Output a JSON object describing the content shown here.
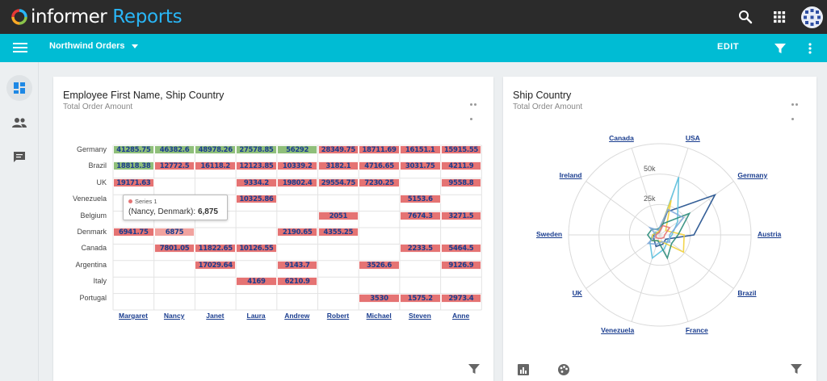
{
  "app": {
    "brand_name": "informer",
    "product": "Reports"
  },
  "toolbar": {
    "report_name": "Northwind Orders",
    "edit_label": "EDIT"
  },
  "rail": {
    "items": [
      "dashboard-icon",
      "people-icon",
      "chat-icon"
    ]
  },
  "heatmap_card": {
    "title": "Employee First Name, Ship Country",
    "subtitle": "Total Order Amount",
    "rows": [
      "Germany",
      "Brazil",
      "UK",
      "Venezuela",
      "Belgium",
      "Denmark",
      "Canada",
      "Argentina",
      "Italy",
      "Portugal"
    ],
    "cols": [
      "Margaret",
      "Nancy",
      "Janet",
      "Laura",
      "Andrew",
      "Robert",
      "Michael",
      "Steven",
      "Anne"
    ],
    "tooltip": {
      "series": "Series 1",
      "label": "(Nancy, Denmark):",
      "value": "6,875"
    }
  },
  "radar_card": {
    "title": "Ship Country",
    "subtitle": "Total Order Amount",
    "ticks": [
      "50k",
      "25k"
    ]
  },
  "chart_data": [
    {
      "type": "heatmap",
      "title": "Employee First Name, Ship Country",
      "subtitle": "Total Order Amount",
      "x_categories": [
        "Margaret",
        "Nancy",
        "Janet",
        "Laura",
        "Andrew",
        "Robert",
        "Michael",
        "Steven",
        "Anne"
      ],
      "y_categories": [
        "Germany",
        "Brazil",
        "UK",
        "Venezuela",
        "Belgium",
        "Denmark",
        "Canada",
        "Argentina",
        "Italy",
        "Portugal"
      ],
      "cells": [
        {
          "x": "Margaret",
          "y": "Germany",
          "label": "41285.75",
          "color": "green"
        },
        {
          "x": "Janet",
          "y": "Germany",
          "label": "48978.26",
          "color": "green"
        },
        {
          "x": "Laura",
          "y": "Germany",
          "label": "27578.85",
          "color": "green"
        },
        {
          "x": "Andrew",
          "y": "Germany",
          "label": "56292",
          "color": "green"
        },
        {
          "x": "Anne",
          "y": "Germany",
          "label": "15915.55",
          "color": "red"
        },
        {
          "x": "Nancy",
          "y": "Germany",
          "label": "46382.6",
          "color": "green"
        },
        {
          "x": "Robert",
          "y": "Germany",
          "label": "28349.75",
          "color": "red"
        },
        {
          "x": "Michael",
          "y": "Germany",
          "label": "18711.69",
          "color": "red"
        },
        {
          "x": "Steven",
          "y": "Germany",
          "label": "16151.1",
          "color": "red"
        },
        {
          "x": "Margaret",
          "y": "Brazil",
          "label": "18818.38",
          "color": "green"
        },
        {
          "x": "Laura",
          "y": "Brazil",
          "label": "12123.85",
          "color": "red"
        },
        {
          "x": "Andrew",
          "y": "Brazil",
          "label": "10339.2",
          "color": "red"
        },
        {
          "x": "Nancy",
          "y": "Brazil",
          "label": "12772.5",
          "color": "red"
        },
        {
          "x": "Janet",
          "y": "Brazil",
          "label": "16118.2",
          "color": "red"
        },
        {
          "x": "Robert",
          "y": "Brazil",
          "label": "3182.1",
          "color": "red"
        },
        {
          "x": "Michael",
          "y": "Brazil",
          "label": "4716.65",
          "color": "red"
        },
        {
          "x": "Steven",
          "y": "Brazil",
          "label": "3031.75",
          "color": "red"
        },
        {
          "x": "Anne",
          "y": "Brazil",
          "label": "4211.9",
          "color": "red"
        },
        {
          "x": "Laura",
          "y": "UK",
          "label": "9334.2",
          "color": "red"
        },
        {
          "x": "Margaret",
          "y": "UK",
          "label": "19171.63",
          "color": "red"
        },
        {
          "x": "Andrew",
          "y": "UK",
          "label": "19802.4",
          "color": "red"
        },
        {
          "x": "Robert",
          "y": "UK",
          "label": "29554.75",
          "color": "red"
        },
        {
          "x": "Michael",
          "y": "UK",
          "label": "7230.25",
          "color": "red"
        },
        {
          "x": "Anne",
          "y": "UK",
          "label": "9558.8",
          "color": "red"
        },
        {
          "x": "Laura",
          "y": "Venezuela",
          "label": "10325.86",
          "color": "red"
        },
        {
          "x": "Steven",
          "y": "Venezuela",
          "label": "5153.6",
          "color": "red"
        },
        {
          "x": "Robert",
          "y": "Belgium",
          "label": "2051",
          "color": "red"
        },
        {
          "x": "Steven",
          "y": "Belgium",
          "label": "7674.3",
          "color": "red"
        },
        {
          "x": "Anne",
          "y": "Belgium",
          "label": "3271.5",
          "color": "red"
        },
        {
          "x": "Margaret",
          "y": "Denmark",
          "label": "6941.75",
          "color": "red"
        },
        {
          "x": "Nancy",
          "y": "Denmark",
          "label": "6875",
          "color": "pink"
        },
        {
          "x": "Andrew",
          "y": "Denmark",
          "label": "2190.65",
          "color": "red"
        },
        {
          "x": "Robert",
          "y": "Denmark",
          "label": "4355.25",
          "color": "red"
        },
        {
          "x": "Nancy",
          "y": "Canada",
          "label": "7801.05",
          "color": "red"
        },
        {
          "x": "Janet",
          "y": "Canada",
          "label": "11822.65",
          "color": "red"
        },
        {
          "x": "Laura",
          "y": "Canada",
          "label": "10126.55",
          "color": "red"
        },
        {
          "x": "Steven",
          "y": "Canada",
          "label": "2233.5",
          "color": "red"
        },
        {
          "x": "Anne",
          "y": "Canada",
          "label": "5464.5",
          "color": "red"
        },
        {
          "x": "Andrew",
          "y": "Argentina",
          "label": "9143.7",
          "color": "red"
        },
        {
          "x": "Michael",
          "y": "Argentina",
          "label": "3526.6",
          "color": "red"
        },
        {
          "x": "Janet",
          "y": "Argentina",
          "label": "17029.64",
          "color": "red"
        },
        {
          "x": "Anne",
          "y": "Argentina",
          "label": "9126.9",
          "color": "red"
        },
        {
          "x": "Laura",
          "y": "Italy",
          "label": "4169",
          "color": "red"
        },
        {
          "x": "Andrew",
          "y": "Italy",
          "label": "6210.9",
          "color": "red"
        },
        {
          "x": "Michael",
          "y": "Portugal",
          "label": "3530",
          "color": "red"
        },
        {
          "x": "Anne",
          "y": "Portugal",
          "label": "2973.4",
          "color": "red"
        },
        {
          "x": "Steven",
          "y": "Portugal",
          "label": "1575.2",
          "color": "red"
        }
      ]
    },
    {
      "type": "radar",
      "title": "Ship Country",
      "subtitle": "Total Order Amount",
      "axes": [
        "USA",
        "Germany",
        "Austria",
        "Brazil",
        "France",
        "Venezuela",
        "UK",
        "Sweden",
        "Ireland",
        "Canada"
      ],
      "radial_ticks": [
        "25k",
        "50k"
      ],
      "rmax": 75000,
      "series": [
        {
          "color": "#1f4e8c",
          "values": [
            20000,
            56000,
            28000,
            6000,
            8000,
            10000,
            6000,
            5000,
            3000,
            2000
          ]
        },
        {
          "color": "#5bc0de",
          "values": [
            50000,
            18000,
            10000,
            8000,
            12000,
            20000,
            10000,
            6000,
            4000,
            2000
          ]
        },
        {
          "color": "#f2d13a",
          "values": [
            30000,
            6000,
            20000,
            24000,
            6000,
            5000,
            8000,
            6000,
            3000,
            3000
          ]
        },
        {
          "color": "#2a8c7a",
          "values": [
            10000,
            30000,
            15000,
            12000,
            20000,
            5000,
            8000,
            10000,
            8000,
            5000
          ]
        },
        {
          "color": "#7fa7d9",
          "values": [
            22000,
            24000,
            8000,
            10000,
            6000,
            8000,
            12000,
            3000,
            10000,
            4000
          ]
        },
        {
          "color": "#e57373",
          "values": [
            8000,
            10000,
            4000,
            4000,
            3000,
            3000,
            4000,
            3000,
            2000,
            2000
          ]
        }
      ]
    }
  ]
}
